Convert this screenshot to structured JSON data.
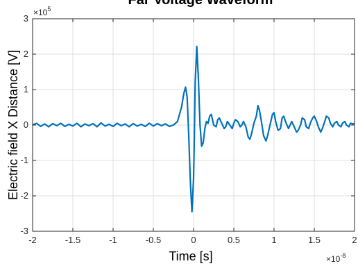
{
  "chart_data": {
    "type": "line",
    "title": "Far Voltage Waveform",
    "xlabel": "Time [s]",
    "ylabel": "Electric field X Distance [V]",
    "x_multiplier_label": "×10",
    "x_multiplier_exp": "-8",
    "y_multiplier_label": "×10",
    "y_multiplier_exp": "5",
    "xlim": [
      -2,
      2
    ],
    "ylim": [
      -3,
      3
    ],
    "grid": true,
    "x_ticks": [
      -2,
      -1.5,
      -1,
      -0.5,
      0,
      0.5,
      1,
      1.5,
      2
    ],
    "x_tick_labels": [
      "-2",
      "-1.5",
      "-1",
      "-0.5",
      "0",
      "0.5",
      "1",
      "1.5",
      "2"
    ],
    "y_ticks": [
      -3,
      -2,
      -1,
      0,
      1,
      2,
      3
    ],
    "y_tick_labels": [
      "-3",
      "-2",
      "-1",
      "0",
      "1",
      "2",
      "3"
    ],
    "series": [
      {
        "color": "#0072BD",
        "x": [
          -2.0,
          -1.95,
          -1.9,
          -1.85,
          -1.8,
          -1.75,
          -1.7,
          -1.65,
          -1.6,
          -1.55,
          -1.5,
          -1.45,
          -1.4,
          -1.35,
          -1.3,
          -1.25,
          -1.2,
          -1.15,
          -1.1,
          -1.05,
          -1.0,
          -0.95,
          -0.9,
          -0.85,
          -0.8,
          -0.75,
          -0.7,
          -0.65,
          -0.6,
          -0.55,
          -0.5,
          -0.45,
          -0.4,
          -0.35,
          -0.3,
          -0.25,
          -0.2,
          -0.15,
          -0.12,
          -0.1,
          -0.08,
          -0.06,
          -0.04,
          -0.02,
          0.0,
          0.01,
          0.02,
          0.04,
          0.06,
          0.08,
          0.1,
          0.12,
          0.14,
          0.16,
          0.18,
          0.2,
          0.22,
          0.25,
          0.28,
          0.3,
          0.32,
          0.35,
          0.38,
          0.4,
          0.42,
          0.45,
          0.48,
          0.5,
          0.52,
          0.55,
          0.58,
          0.6,
          0.62,
          0.65,
          0.68,
          0.7,
          0.72,
          0.75,
          0.78,
          0.8,
          0.82,
          0.85,
          0.87,
          0.9,
          0.92,
          0.95,
          0.98,
          1.0,
          1.02,
          1.05,
          1.08,
          1.1,
          1.12,
          1.15,
          1.18,
          1.2,
          1.22,
          1.25,
          1.28,
          1.3,
          1.33,
          1.35,
          1.38,
          1.4,
          1.43,
          1.45,
          1.48,
          1.5,
          1.53,
          1.55,
          1.58,
          1.6,
          1.63,
          1.65,
          1.68,
          1.7,
          1.73,
          1.75,
          1.78,
          1.8,
          1.83,
          1.85,
          1.88,
          1.9,
          1.93,
          1.95,
          1.98,
          2.0
        ],
        "y": [
          0.0,
          0.05,
          -0.04,
          0.03,
          -0.05,
          0.04,
          -0.02,
          0.05,
          -0.04,
          0.02,
          -0.03,
          0.05,
          -0.05,
          0.03,
          -0.02,
          0.04,
          -0.05,
          0.06,
          -0.03,
          0.02,
          -0.04,
          0.05,
          -0.02,
          0.03,
          -0.05,
          0.04,
          -0.03,
          0.02,
          -0.04,
          0.05,
          -0.03,
          0.04,
          -0.02,
          0.03,
          -0.04,
          0.0,
          0.1,
          0.5,
          0.9,
          1.07,
          0.8,
          -0.3,
          -1.6,
          -2.45,
          -1.5,
          -0.3,
          1.2,
          2.22,
          1.3,
          0.0,
          -0.6,
          -0.5,
          -0.1,
          0.1,
          0.05,
          0.25,
          0.3,
          0.0,
          -0.05,
          0.15,
          0.2,
          0.05,
          -0.1,
          -0.05,
          0.1,
          0.0,
          -0.1,
          0.05,
          0.15,
          0.1,
          -0.05,
          0.0,
          0.1,
          -0.05,
          -0.35,
          -0.4,
          -0.25,
          0.05,
          0.25,
          0.55,
          0.4,
          0.0,
          -0.3,
          -0.45,
          -0.3,
          0.0,
          0.3,
          0.35,
          0.1,
          -0.15,
          -0.1,
          0.2,
          0.25,
          0.05,
          -0.1,
          0.0,
          0.1,
          -0.05,
          -0.2,
          -0.15,
          0.0,
          0.2,
          0.15,
          -0.05,
          -0.1,
          0.05,
          0.2,
          0.25,
          0.1,
          -0.05,
          -0.2,
          -0.1,
          0.1,
          0.25,
          0.2,
          0.05,
          -0.05,
          0.05,
          0.1,
          0.0,
          -0.05,
          0.05,
          0.1,
          0.0,
          -0.05,
          0.05,
          0.03,
          0.05
        ]
      }
    ]
  }
}
